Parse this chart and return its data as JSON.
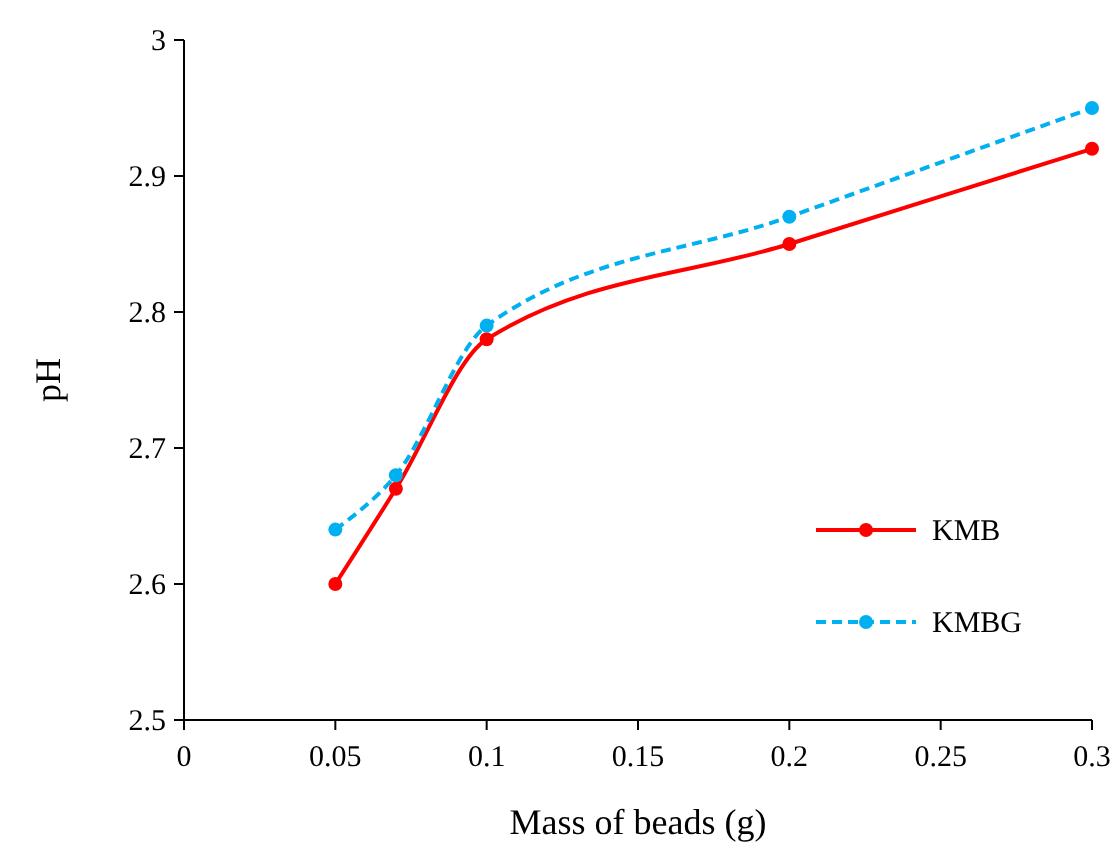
{
  "chart_data": {
    "type": "line",
    "xlabel": "Mass of beads (g)",
    "ylabel": "pH",
    "xlim": [
      0,
      0.3
    ],
    "xticks": [
      0,
      0.05,
      0.1,
      0.15,
      0.2,
      0.25,
      0.3
    ],
    "ylim": [
      2.5,
      3
    ],
    "yticks": [
      2.5,
      2.6,
      2.7,
      2.8,
      2.9,
      3
    ],
    "grid": false,
    "legend": "right",
    "marker": "circle",
    "series": [
      {
        "name": "KMB",
        "color": "#ff0000",
        "line_style": "solid",
        "x": [
          0.05,
          0.07,
          0.1,
          0.2,
          0.3
        ],
        "values": [
          2.6,
          2.67,
          2.78,
          2.85,
          2.92
        ]
      },
      {
        "name": "KMBG",
        "color": "#00b0f0",
        "line_style": "dashed",
        "x": [
          0.05,
          0.07,
          0.1,
          0.2,
          0.3
        ],
        "values": [
          2.64,
          2.68,
          2.79,
          2.87,
          2.95
        ]
      }
    ]
  }
}
